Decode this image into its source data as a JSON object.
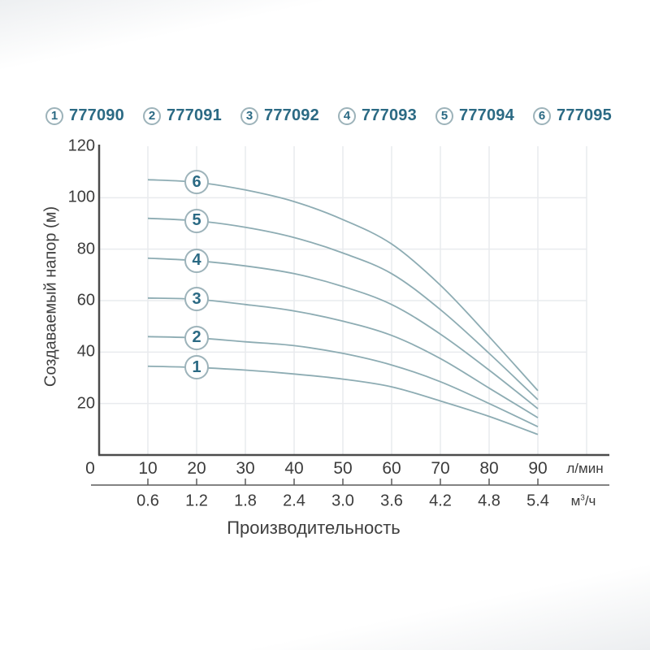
{
  "legend": {
    "items": [
      {
        "num": "1",
        "code": "777090"
      },
      {
        "num": "2",
        "code": "777091"
      },
      {
        "num": "3",
        "code": "777092"
      },
      {
        "num": "4",
        "code": "777093"
      },
      {
        "num": "5",
        "code": "777094"
      },
      {
        "num": "6",
        "code": "777095"
      }
    ]
  },
  "chart_data": {
    "type": "line",
    "x": [
      10,
      20,
      30,
      40,
      50,
      60,
      70,
      80,
      90
    ],
    "series": [
      {
        "name": "1",
        "code": "777090",
        "values": [
          34.5,
          34,
          33,
          31.5,
          29.5,
          26.5,
          21,
          15,
          8
        ]
      },
      {
        "name": "2",
        "code": "777091",
        "values": [
          46,
          45.5,
          44,
          42.5,
          39.5,
          35,
          28.5,
          20,
          11
        ]
      },
      {
        "name": "3",
        "code": "777092",
        "values": [
          61,
          60.5,
          58.5,
          56,
          52,
          46.5,
          37.5,
          26,
          14.5
        ]
      },
      {
        "name": "4",
        "code": "777093",
        "values": [
          76.5,
          75.5,
          73.5,
          70.5,
          65.5,
          58.5,
          47,
          33,
          18
        ]
      },
      {
        "name": "5",
        "code": "777094",
        "values": [
          92,
          91,
          88.5,
          84.5,
          78.5,
          70.5,
          56.5,
          39.5,
          21.5
        ]
      },
      {
        "name": "6",
        "code": "777095",
        "values": [
          107,
          106,
          103,
          98.5,
          91.5,
          82,
          66,
          46,
          25
        ]
      }
    ],
    "curve_label_at_x": 20,
    "title": "",
    "xlabel": "Производительность",
    "ylabel": "Создаваемый напор (м)",
    "xlim": [
      0,
      105
    ],
    "ylim": [
      0,
      120
    ],
    "grid": true,
    "legend_position": "top",
    "x_ticks": [
      0,
      10,
      20,
      30,
      40,
      50,
      60,
      70,
      80,
      90
    ],
    "x_grid_ticks": [
      10,
      20,
      30,
      40,
      50,
      60,
      70,
      80,
      90,
      100
    ],
    "y_ticks": [
      20,
      40,
      60,
      80,
      100,
      120
    ],
    "y_grid_ticks": [
      20,
      40,
      60,
      80,
      100
    ],
    "x_unit": "л/мин",
    "x2_ticks": [
      "0.6",
      "1.2",
      "1.8",
      "2.4",
      "3.0",
      "3.6",
      "4.2",
      "4.8",
      "5.4"
    ],
    "x2_unit_base": "м",
    "x2_unit_sup": "3",
    "x2_unit_rest": "/ч"
  },
  "colors": {
    "accent_text": "#2b6a84",
    "curve": "#8dacb3",
    "badge_border": "#9db3ba",
    "grid": "#e9ebee",
    "axis": "#4b4b4b",
    "axis2": "#5a5a5a",
    "tick_text": "#3c3c3c"
  }
}
